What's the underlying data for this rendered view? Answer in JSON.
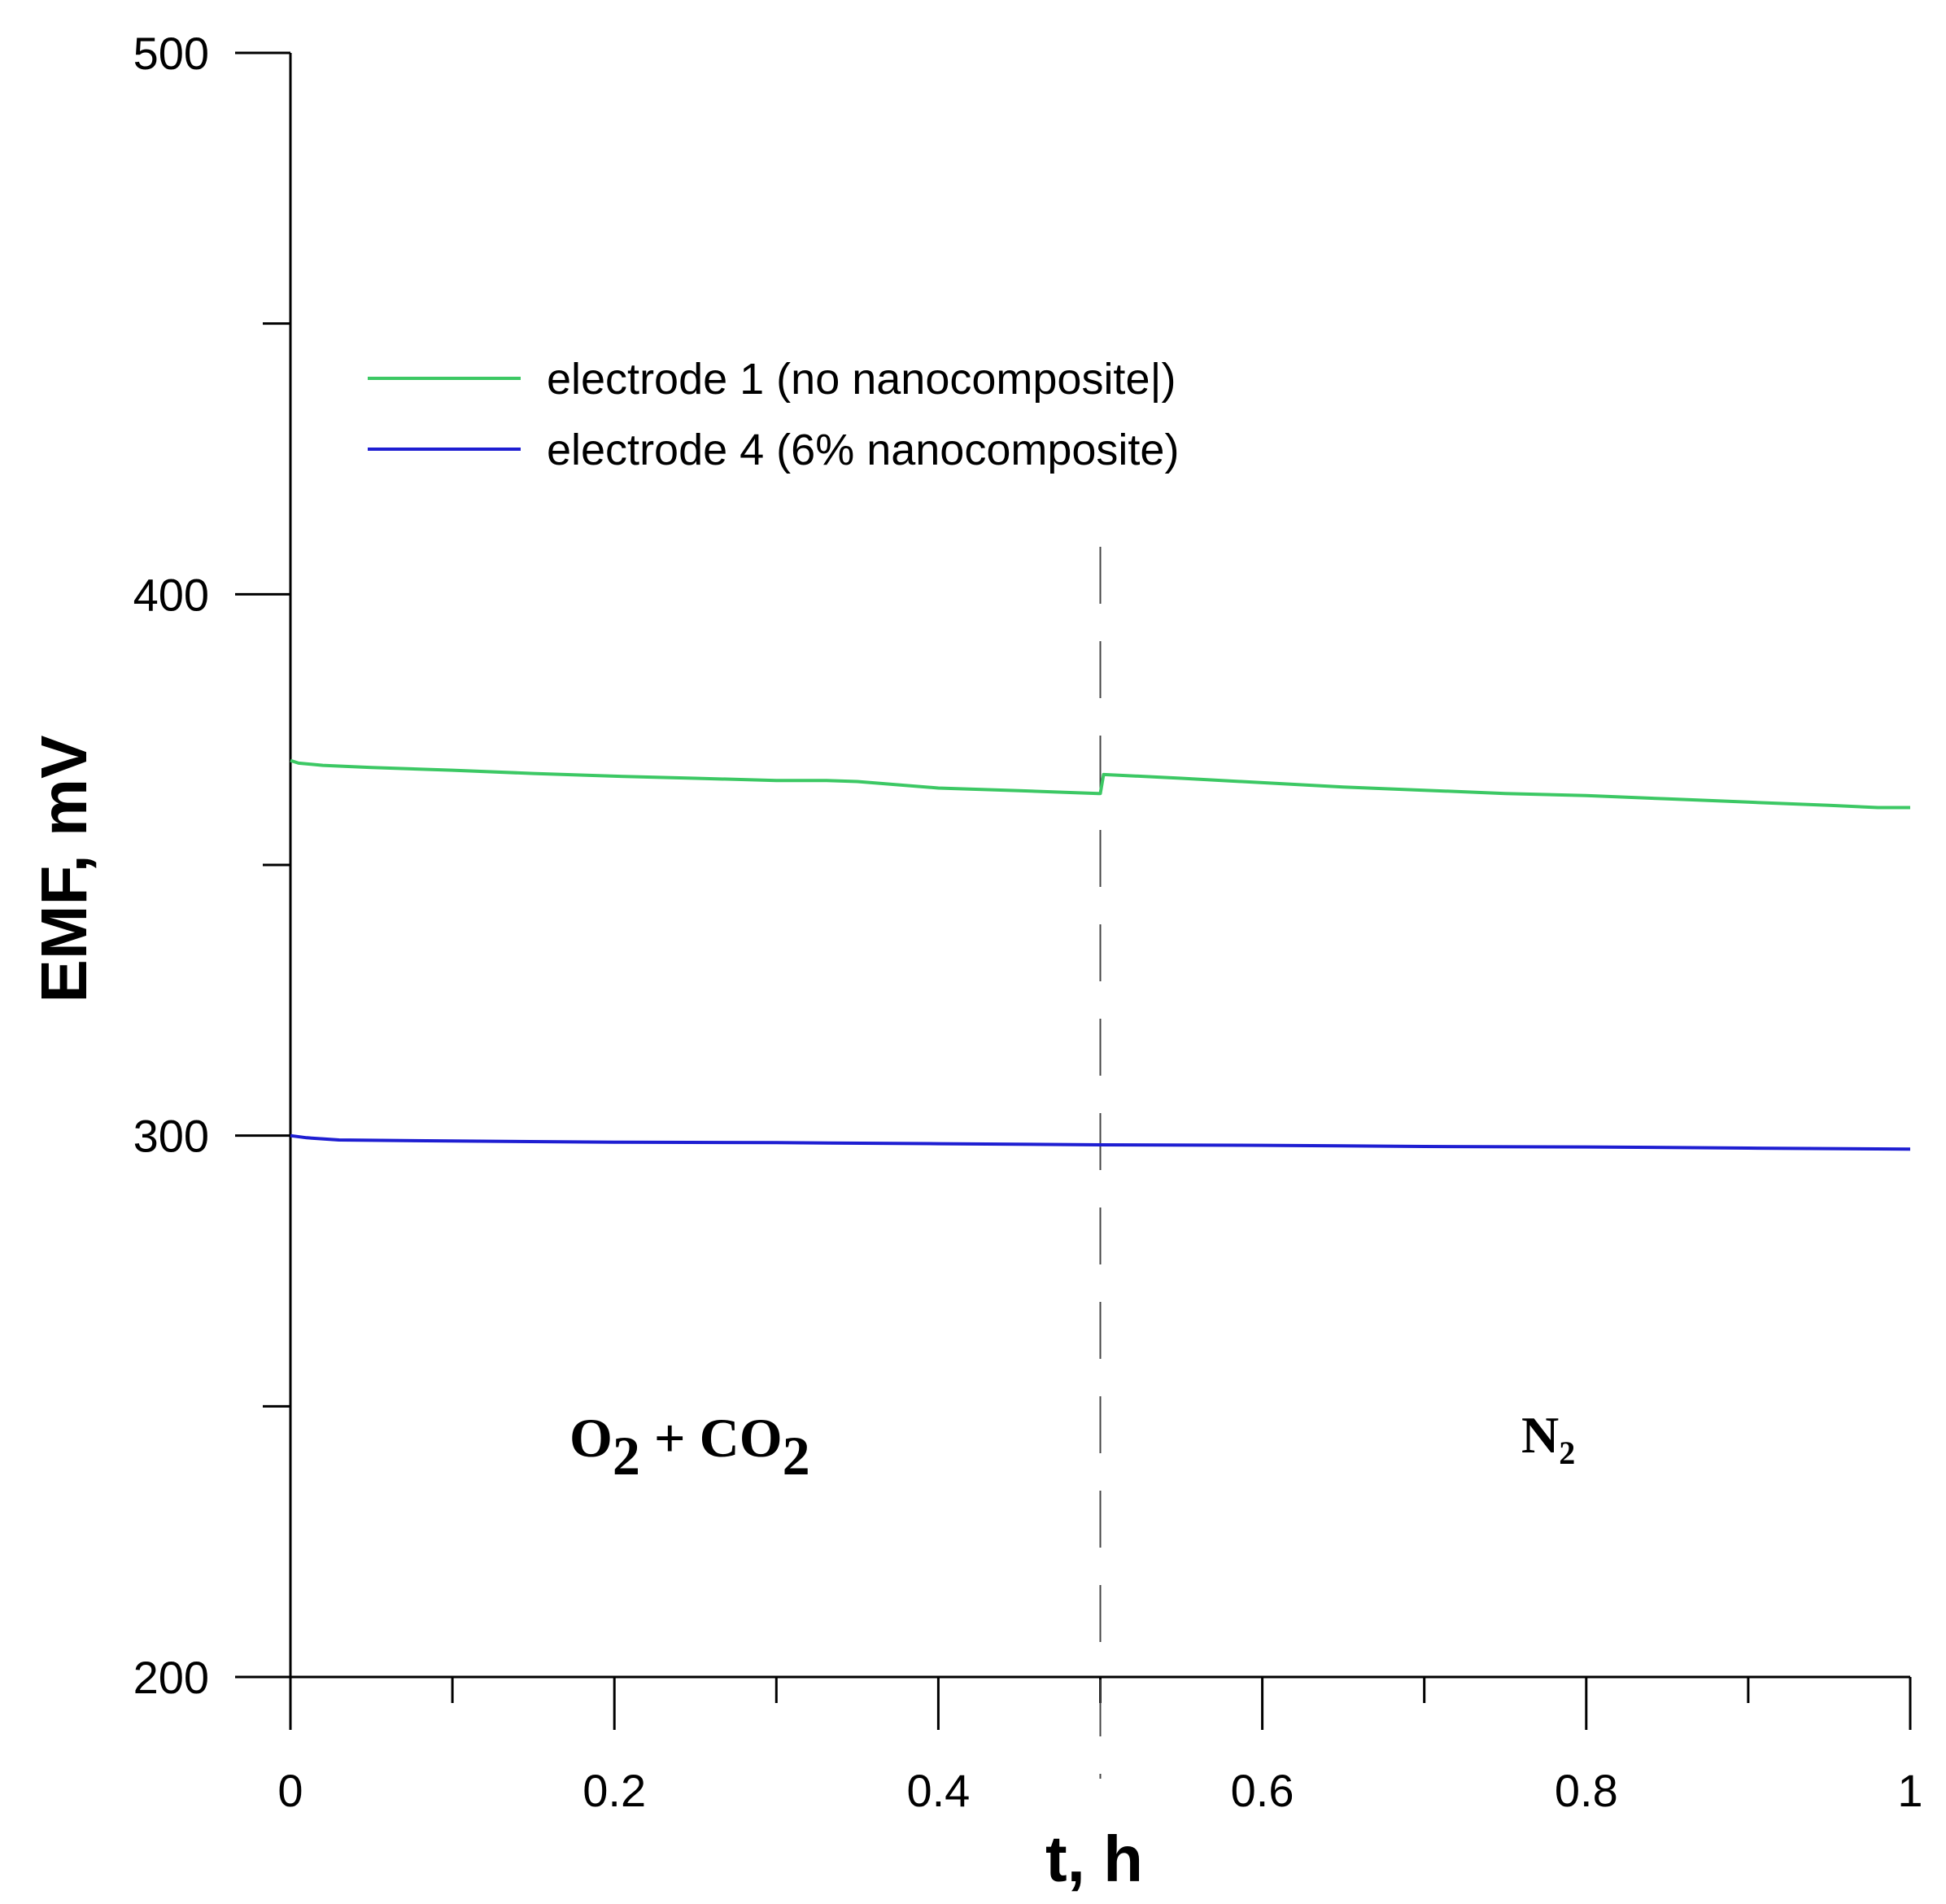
{
  "chart_data": {
    "type": "line",
    "title": "",
    "xlabel": "t, h",
    "ylabel": "EMF, mV",
    "xlim": [
      0,
      1
    ],
    "ylim": [
      200,
      500
    ],
    "x_ticks": [
      0,
      0.2,
      0.4,
      0.6,
      0.8,
      1
    ],
    "x_tick_labels": [
      "0",
      "0.2",
      "0.4",
      "0.6",
      "0.8",
      "1"
    ],
    "x_minor_ticks": [
      0.1,
      0.3,
      0.5,
      0.7,
      0.9
    ],
    "y_ticks": [
      200,
      300,
      400,
      500
    ],
    "y_tick_labels": [
      "200",
      "300",
      "400",
      "500"
    ],
    "y_minor_ticks": [
      250,
      350,
      450
    ],
    "grid": false,
    "legend_position": "top-left",
    "series": [
      {
        "name": "electrode 1 (no nanocomposite|)",
        "color": "#3cc864",
        "x": [
          0,
          0.005,
          0.02,
          0.05,
          0.1,
          0.15,
          0.2,
          0.25,
          0.3,
          0.33,
          0.35,
          0.4,
          0.45,
          0.499,
          0.5,
          0.502,
          0.51,
          0.55,
          0.6,
          0.65,
          0.7,
          0.75,
          0.8,
          0.85,
          0.9,
          0.95,
          0.98,
          1.0
        ],
        "y": [
          369.3,
          368.8,
          368.4,
          368.0,
          367.5,
          366.9,
          366.4,
          366.0,
          365.6,
          365.6,
          365.4,
          364.2,
          363.7,
          363.2,
          363.2,
          366.7,
          366.6,
          366.0,
          365.2,
          364.4,
          363.8,
          363.2,
          362.8,
          362.2,
          361.6,
          361.0,
          360.6,
          360.6
        ]
      },
      {
        "name": "electrode 4 (6% nanocomposite)",
        "color": "#1e1ed2",
        "x": [
          0,
          0.01,
          0.03,
          0.1,
          0.2,
          0.3,
          0.4,
          0.5,
          0.6,
          0.7,
          0.8,
          0.9,
          1.0
        ],
        "y": [
          300.0,
          299.6,
          299.2,
          299.0,
          298.8,
          298.7,
          298.5,
          298.3,
          298.2,
          298.0,
          297.9,
          297.7,
          297.5
        ]
      }
    ],
    "annotations": {
      "divider_x": 0.5,
      "region_left": {
        "main": "O",
        "sub1": "2",
        "mid": " + CO",
        "sub2": "2"
      },
      "region_right": {
        "main": "N",
        "sub": "2"
      }
    }
  }
}
